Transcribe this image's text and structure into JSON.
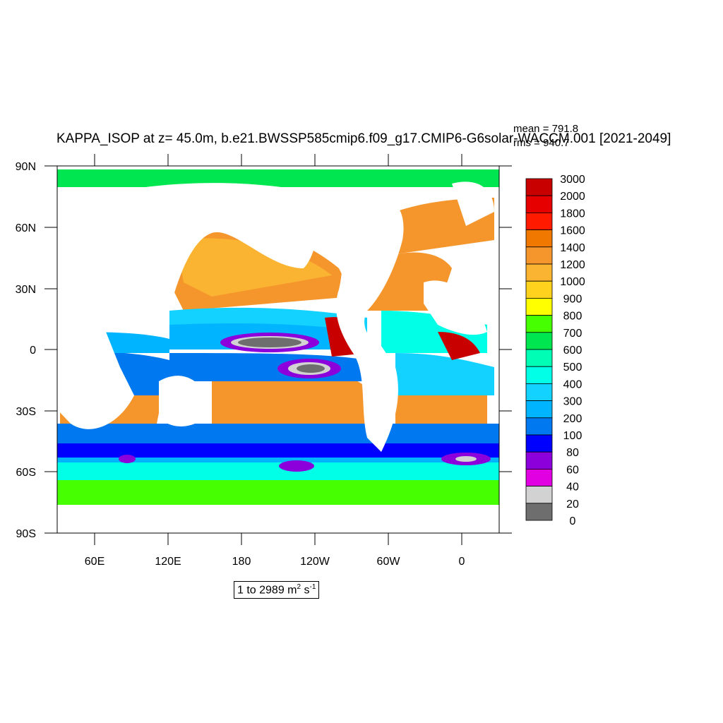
{
  "title": "KAPPA_ISOP at z=  45.0m, b.e21.BWSSP585cmip6.f09_g17.CMIP6-G6solar-WACCM.001 [2021-2049]",
  "stats": {
    "mean": "mean = 791.8",
    "rms": "rms = 940.7"
  },
  "axes": {
    "lat_labels": [
      "90N",
      "60N",
      "30N",
      "0",
      "30S",
      "60S",
      "90S"
    ],
    "lon_labels": [
      "60E",
      "120E",
      "180",
      "120W",
      "60W",
      "0"
    ]
  },
  "colorbar": {
    "levels": [
      "3000",
      "2000",
      "1800",
      "1600",
      "1400",
      "1200",
      "1000",
      "900",
      "800",
      "700",
      "600",
      "500",
      "400",
      "300",
      "200",
      "100",
      "80",
      "60",
      "40",
      "20",
      "0"
    ],
    "colors": [
      "#c80000",
      "#e60000",
      "#ff1a00",
      "#f07800",
      "#f5962d",
      "#fab432",
      "#ffd21e",
      "#ffff00",
      "#46ff00",
      "#00e650",
      "#00ffb4",
      "#00ffe6",
      "#14d2ff",
      "#00b4ff",
      "#0078f0",
      "#0000ff",
      "#8c00dc",
      "#e100e1",
      "#d2d2d2",
      "#6e6e6e"
    ]
  },
  "range": {
    "prefix": "1 to 2989 m",
    "exp1": "2",
    "mid": " s",
    "exp2": "-1"
  }
}
